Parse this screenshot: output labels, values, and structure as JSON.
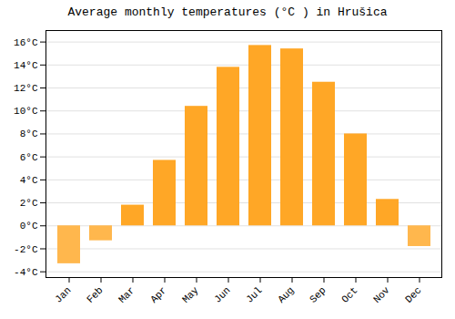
{
  "chart_data": {
    "type": "bar",
    "title": "Average monthly temperatures (°C ) in Hrušica",
    "categories": [
      "Jan",
      "Feb",
      "Mar",
      "Apr",
      "May",
      "Jun",
      "Jul",
      "Aug",
      "Sep",
      "Oct",
      "Nov",
      "Dec"
    ],
    "values": [
      -3.3,
      -1.3,
      1.8,
      5.7,
      10.4,
      13.8,
      15.7,
      15.4,
      12.5,
      8.0,
      2.3,
      -1.8
    ],
    "colors": [
      "#FFB74D",
      "#FFB74D",
      "#FFA726",
      "#FFA726",
      "#FFA726",
      "#FFA726",
      "#FFA726",
      "#FFA726",
      "#FFA726",
      "#FFA726",
      "#FFA726",
      "#FFB74D"
    ],
    "ylim": [
      -4.5,
      17
    ],
    "yticks": [
      {
        "value": -4,
        "label": "-4°C"
      },
      {
        "value": -2,
        "label": "-2°C"
      },
      {
        "value": 0,
        "label": "0°C"
      },
      {
        "value": 2,
        "label": "2°C"
      },
      {
        "value": 4,
        "label": "4°C"
      },
      {
        "value": 6,
        "label": "6°C"
      },
      {
        "value": 8,
        "label": "8°C"
      },
      {
        "value": 10,
        "label": "10°C"
      },
      {
        "value": 12,
        "label": "12°C"
      },
      {
        "value": 14,
        "label": "14°C"
      },
      {
        "value": 16,
        "label": "16°C"
      }
    ],
    "grid": true
  }
}
